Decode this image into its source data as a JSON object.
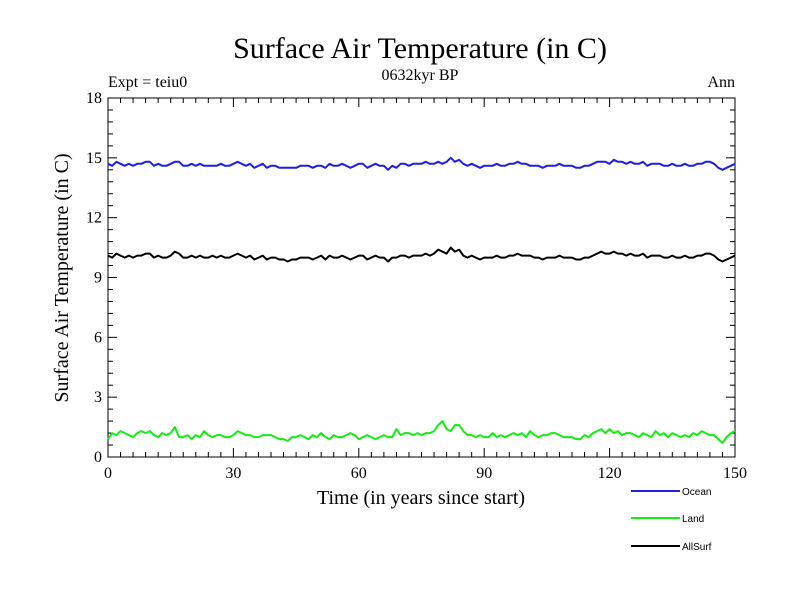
{
  "chart_data": {
    "type": "line",
    "title": "Surface Air Temperature (in C)",
    "subtitle": "0632kyr BP",
    "left_label": "Expt = teiu0",
    "right_label": "Ann",
    "xlabel": "Time (in years since start)",
    "ylabel": "Surface Air Temperature (in C)",
    "xlim": [
      0,
      150
    ],
    "ylim": [
      0,
      18
    ],
    "x_ticks": [
      0,
      30,
      60,
      90,
      120,
      150
    ],
    "y_ticks": [
      0,
      3,
      6,
      9,
      12,
      15,
      18
    ],
    "legend_position": "bottom-right",
    "colors": {
      "Ocean": "#1f1fe0",
      "Land": "#11ee11",
      "AllSurf": "#000000"
    },
    "series": [
      {
        "name": "Ocean",
        "values": [
          14.7,
          14.6,
          14.8,
          14.7,
          14.6,
          14.7,
          14.6,
          14.7,
          14.7,
          14.8,
          14.8,
          14.6,
          14.7,
          14.6,
          14.6,
          14.7,
          14.8,
          14.8,
          14.6,
          14.6,
          14.7,
          14.6,
          14.7,
          14.6,
          14.6,
          14.6,
          14.6,
          14.7,
          14.6,
          14.6,
          14.7,
          14.8,
          14.7,
          14.6,
          14.7,
          14.5,
          14.6,
          14.7,
          14.5,
          14.6,
          14.6,
          14.5,
          14.5,
          14.5,
          14.5,
          14.5,
          14.6,
          14.6,
          14.6,
          14.5,
          14.6,
          14.6,
          14.5,
          14.7,
          14.6,
          14.6,
          14.7,
          14.6,
          14.5,
          14.6,
          14.7,
          14.7,
          14.5,
          14.6,
          14.7,
          14.6,
          14.6,
          14.4,
          14.6,
          14.5,
          14.7,
          14.7,
          14.6,
          14.7,
          14.7,
          14.7,
          14.8,
          14.7,
          14.7,
          14.8,
          14.7,
          14.8,
          15.0,
          14.8,
          14.9,
          14.7,
          14.6,
          14.7,
          14.6,
          14.5,
          14.6,
          14.6,
          14.6,
          14.7,
          14.6,
          14.6,
          14.7,
          14.7,
          14.8,
          14.7,
          14.7,
          14.6,
          14.6,
          14.6,
          14.5,
          14.6,
          14.6,
          14.6,
          14.7,
          14.6,
          14.6,
          14.6,
          14.5,
          14.5,
          14.6,
          14.6,
          14.7,
          14.8,
          14.8,
          14.8,
          14.7,
          14.9,
          14.8,
          14.8,
          14.7,
          14.8,
          14.7,
          14.7,
          14.8,
          14.6,
          14.7,
          14.7,
          14.7,
          14.6,
          14.6,
          14.7,
          14.6,
          14.6,
          14.7,
          14.6,
          14.6,
          14.7,
          14.7,
          14.8,
          14.8,
          14.7,
          14.5,
          14.4,
          14.5,
          14.6,
          14.7
        ]
      },
      {
        "name": "Land",
        "values": [
          0.9,
          1.2,
          1.1,
          1.3,
          1.2,
          1.1,
          1.0,
          1.2,
          1.3,
          1.2,
          1.3,
          1.1,
          1.0,
          1.2,
          1.1,
          1.2,
          1.5,
          1.0,
          1.0,
          1.1,
          0.9,
          1.1,
          1.0,
          1.3,
          1.1,
          1.0,
          1.1,
          1.1,
          1.0,
          1.0,
          1.1,
          1.3,
          1.2,
          1.1,
          1.1,
          1.0,
          1.0,
          1.1,
          1.1,
          1.1,
          1.0,
          0.9,
          0.9,
          0.8,
          1.0,
          1.0,
          1.1,
          1.0,
          0.9,
          1.1,
          1.0,
          1.2,
          1.0,
          0.9,
          1.1,
          1.0,
          1.0,
          1.1,
          1.2,
          1.1,
          0.9,
          1.0,
          1.1,
          1.0,
          0.9,
          1.0,
          1.1,
          1.0,
          1.0,
          1.4,
          1.1,
          1.2,
          1.2,
          1.1,
          1.2,
          1.1,
          1.2,
          1.2,
          1.3,
          1.6,
          1.8,
          1.4,
          1.3,
          1.6,
          1.6,
          1.3,
          1.1,
          1.1,
          1.0,
          1.1,
          1.0,
          1.0,
          1.2,
          1.0,
          1.1,
          1.0,
          1.1,
          1.2,
          1.1,
          1.2,
          1.0,
          1.3,
          1.1,
          1.0,
          1.1,
          1.1,
          1.2,
          1.2,
          1.1,
          1.0,
          1.0,
          1.0,
          0.9,
          0.9,
          1.1,
          1.0,
          1.2,
          1.3,
          1.4,
          1.2,
          1.4,
          1.2,
          1.3,
          1.1,
          1.2,
          1.2,
          1.1,
          1.0,
          1.2,
          1.1,
          1.0,
          1.3,
          1.1,
          1.2,
          1.0,
          1.2,
          1.1,
          1.0,
          1.1,
          1.0,
          1.2,
          1.1,
          1.3,
          1.2,
          1.1,
          1.1,
          0.9,
          0.7,
          1.0,
          1.2,
          1.3
        ]
      },
      {
        "name": "AllSurf",
        "values": [
          10.1,
          10.0,
          10.2,
          10.1,
          10.0,
          10.1,
          10.0,
          10.1,
          10.1,
          10.2,
          10.2,
          10.0,
          10.1,
          10.0,
          10.0,
          10.1,
          10.3,
          10.2,
          10.0,
          10.0,
          10.1,
          10.0,
          10.1,
          10.0,
          10.0,
          10.1,
          10.0,
          10.1,
          10.0,
          10.0,
          10.1,
          10.2,
          10.1,
          10.0,
          10.1,
          9.9,
          10.0,
          10.1,
          9.9,
          10.0,
          10.0,
          9.9,
          9.9,
          9.8,
          9.9,
          9.9,
          10.0,
          10.0,
          10.0,
          9.9,
          10.0,
          10.1,
          9.9,
          10.1,
          10.0,
          10.0,
          10.1,
          10.0,
          9.9,
          10.0,
          10.1,
          10.1,
          9.9,
          10.0,
          10.1,
          10.0,
          10.0,
          9.8,
          10.0,
          10.0,
          10.1,
          10.1,
          10.0,
          10.1,
          10.1,
          10.1,
          10.2,
          10.1,
          10.2,
          10.4,
          10.3,
          10.2,
          10.5,
          10.3,
          10.4,
          10.1,
          10.0,
          10.1,
          10.0,
          9.9,
          10.0,
          10.0,
          10.0,
          10.1,
          10.0,
          10.0,
          10.1,
          10.1,
          10.2,
          10.1,
          10.1,
          10.1,
          10.0,
          10.0,
          9.9,
          10.0,
          10.0,
          10.0,
          10.1,
          10.0,
          10.0,
          10.0,
          9.9,
          9.9,
          10.0,
          10.0,
          10.1,
          10.2,
          10.3,
          10.2,
          10.2,
          10.3,
          10.2,
          10.2,
          10.1,
          10.2,
          10.1,
          10.1,
          10.2,
          10.0,
          10.1,
          10.1,
          10.1,
          10.0,
          10.0,
          10.1,
          10.0,
          10.0,
          10.1,
          10.0,
          10.0,
          10.1,
          10.1,
          10.2,
          10.2,
          10.1,
          9.9,
          9.8,
          9.9,
          10.0,
          10.1
        ]
      }
    ]
  }
}
